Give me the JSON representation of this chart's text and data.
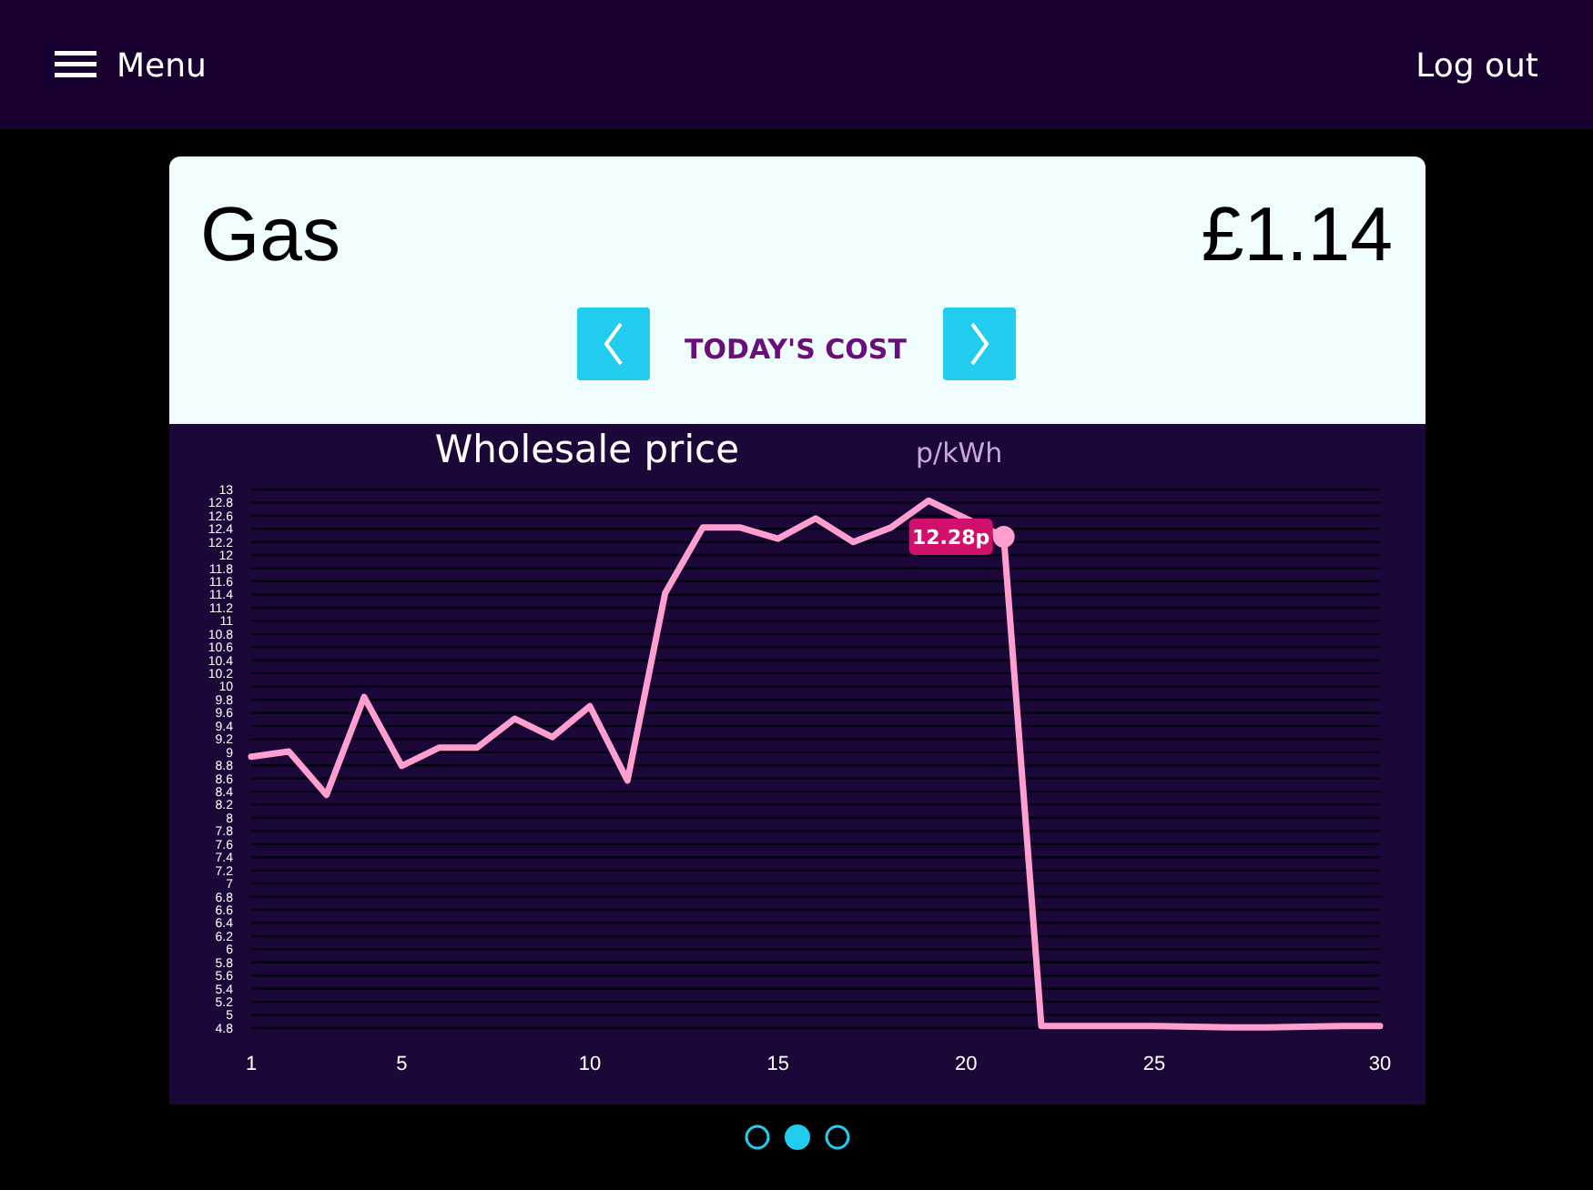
{
  "chart_data": {
    "type": "line",
    "title": "Wholesale price",
    "subtitle": "p/kWh",
    "categories": [
      "1",
      null,
      null,
      null,
      "5",
      null,
      null,
      null,
      null,
      "10",
      null,
      null,
      null,
      null,
      "15",
      null,
      null,
      null,
      null,
      "20",
      null,
      null,
      null,
      null,
      "25",
      null,
      null,
      null,
      null,
      null,
      "30"
    ],
    "series": [
      {
        "color": "#ff9fd0",
        "values": [
          8.93,
          9.01,
          8.35,
          9.84,
          8.79,
          9.07,
          9.07,
          9.51,
          9.23,
          9.7,
          8.57,
          11.42,
          12.42,
          12.42,
          12.25,
          12.56,
          12.2,
          12.42,
          12.83,
          null,
          12.28,
          4.83,
          4.83,
          4.83,
          4.83,
          4.82,
          4.81,
          4.81,
          4.82,
          4.83,
          4.83
        ],
        "value_labels": [
          null,
          null,
          null,
          null,
          null,
          null,
          null,
          null,
          null,
          null,
          null,
          null,
          null,
          null,
          null,
          null,
          null,
          null,
          null,
          null,
          "12.28p",
          null,
          null,
          null,
          null,
          null,
          null,
          null,
          null,
          null,
          null
        ]
      }
    ],
    "ylim": [
      4.8,
      13
    ],
    "yticks": [
      4.8,
      5,
      5.2,
      5.4,
      5.6,
      5.8,
      6,
      6.2,
      6.4,
      6.6,
      6.8,
      7,
      7.2,
      7.4,
      7.6,
      7.8,
      8,
      8.2,
      8.4,
      8.6,
      8.8,
      9,
      9.2,
      9.4,
      9.6,
      9.8,
      10,
      10.2,
      10.4,
      10.6,
      10.8,
      11,
      11.2,
      11.4,
      11.6,
      11.8,
      12,
      12.2,
      12.4,
      12.6,
      12.8,
      13
    ],
    "grid": "y",
    "marker": "none",
    "line_style": "solid",
    "annotations": [
      "Menu",
      "Log out",
      "Gas",
      "£1.14",
      "TODAY'S COST"
    ]
  }
}
